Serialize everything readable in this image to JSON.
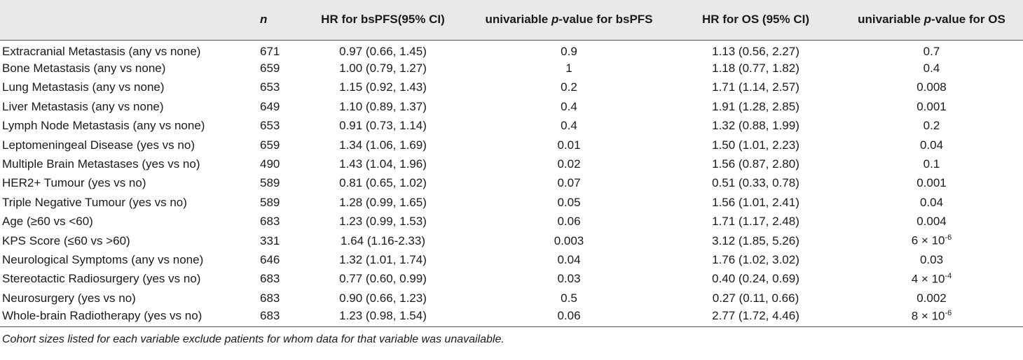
{
  "header": {
    "variable": "",
    "n": "n",
    "hr_bspfs": "HR for bsPFS(95% CI)",
    "p_bspfs_prefix": "univariable ",
    "p_bspfs_p": "p",
    "p_bspfs_suffix": "-value for bsPFS",
    "hr_os": "HR for OS (95% CI)",
    "p_os_prefix": "univariable ",
    "p_os_p": "p",
    "p_os_suffix": "-value for OS"
  },
  "rows": [
    {
      "variable": "Extracranial Metastasis (any vs none)",
      "n": "671",
      "hr_bspfs": "0.97 (0.66, 1.45)",
      "p_bspfs": "0.9",
      "hr_os": "1.13 (0.56, 2.27)",
      "p_os": "0.7",
      "p_os_exp": ""
    },
    {
      "variable": "Bone Metastasis (any vs none)",
      "n": "659",
      "hr_bspfs": "1.00 (0.79, 1.27)",
      "p_bspfs": "1",
      "hr_os": "1.18 (0.77, 1.82)",
      "p_os": "0.4",
      "p_os_exp": ""
    },
    {
      "variable": "Lung Metastasis (any vs none)",
      "n": "653",
      "hr_bspfs": "1.15 (0.92, 1.43)",
      "p_bspfs": "0.2",
      "hr_os": "1.71 (1.14, 2.57)",
      "p_os": "0.008",
      "p_os_exp": ""
    },
    {
      "variable": "Liver Metastasis (any vs none)",
      "n": "649",
      "hr_bspfs": "1.10 (0.89, 1.37)",
      "p_bspfs": "0.4",
      "hr_os": "1.91 (1.28, 2.85)",
      "p_os": "0.001",
      "p_os_exp": ""
    },
    {
      "variable": "Lymph Node Metastasis (any vs none)",
      "n": "653",
      "hr_bspfs": "0.91 (0.73, 1.14)",
      "p_bspfs": "0.4",
      "hr_os": "1.32 (0.88, 1.99)",
      "p_os": "0.2",
      "p_os_exp": ""
    },
    {
      "variable": "Leptomeningeal Disease (yes vs no)",
      "n": "659",
      "hr_bspfs": "1.34 (1.06, 1.69)",
      "p_bspfs": "0.01",
      "hr_os": "1.50 (1.01, 2.23)",
      "p_os": "0.04",
      "p_os_exp": ""
    },
    {
      "variable": "Multiple Brain Metastases (yes vs no)",
      "n": "490",
      "hr_bspfs": "1.43 (1.04, 1.96)",
      "p_bspfs": "0.02",
      "hr_os": "1.56 (0.87, 2.80)",
      "p_os": "0.1",
      "p_os_exp": ""
    },
    {
      "variable": "HER2+ Tumour (yes vs no)",
      "n": "589",
      "hr_bspfs": "0.81 (0.65, 1.02)",
      "p_bspfs": "0.07",
      "hr_os": "0.51 (0.33, 0.78)",
      "p_os": "0.001",
      "p_os_exp": ""
    },
    {
      "variable": "Triple Negative Tumour (yes vs no)",
      "n": "589",
      "hr_bspfs": "1.28 (0.99, 1.65)",
      "p_bspfs": "0.05",
      "hr_os": "1.56 (1.01, 2.41)",
      "p_os": "0.04",
      "p_os_exp": ""
    },
    {
      "variable": "Age (≥60 vs <60)",
      "n": "683",
      "hr_bspfs": "1.23 (0.99, 1.53)",
      "p_bspfs": "0.06",
      "hr_os": "1.71 (1.17, 2.48)",
      "p_os": "0.004",
      "p_os_exp": ""
    },
    {
      "variable": "KPS Score (≤60 vs >60)",
      "n": "331",
      "hr_bspfs": "1.64 (1.16-2.33)",
      "p_bspfs": "0.003",
      "hr_os": "3.12 (1.85, 5.26)",
      "p_os": "6 × 10",
      "p_os_exp": "-6"
    },
    {
      "variable": "Neurological Symptoms (any vs none)",
      "n": "646",
      "hr_bspfs": "1.32 (1.01, 1.74)",
      "p_bspfs": "0.04",
      "hr_os": "1.76 (1.02, 3.02)",
      "p_os": "0.03",
      "p_os_exp": ""
    },
    {
      "variable": "Stereotactic Radiosurgery (yes vs no)",
      "n": "683",
      "hr_bspfs": "0.77 (0.60, 0.99)",
      "p_bspfs": "0.03",
      "hr_os": "0.40 (0.24, 0.69)",
      "p_os": "4 × 10",
      "p_os_exp": "-4"
    },
    {
      "variable": "Neurosurgery (yes vs no)",
      "n": "683",
      "hr_bspfs": "0.90 (0.66, 1.23)",
      "p_bspfs": "0.5",
      "hr_os": "0.27 (0.11, 0.66)",
      "p_os": "0.002",
      "p_os_exp": ""
    },
    {
      "variable": "Whole-brain Radiotherapy (yes vs no)",
      "n": "683",
      "hr_bspfs": "1.23 (0.98, 1.54)",
      "p_bspfs": "0.06",
      "hr_os": "2.77 (1.72, 4.46)",
      "p_os": "8 × 10",
      "p_os_exp": "-6"
    }
  ],
  "footnote": "Cohort sizes listed for each variable exclude patients for whom data for that variable was unavailable."
}
